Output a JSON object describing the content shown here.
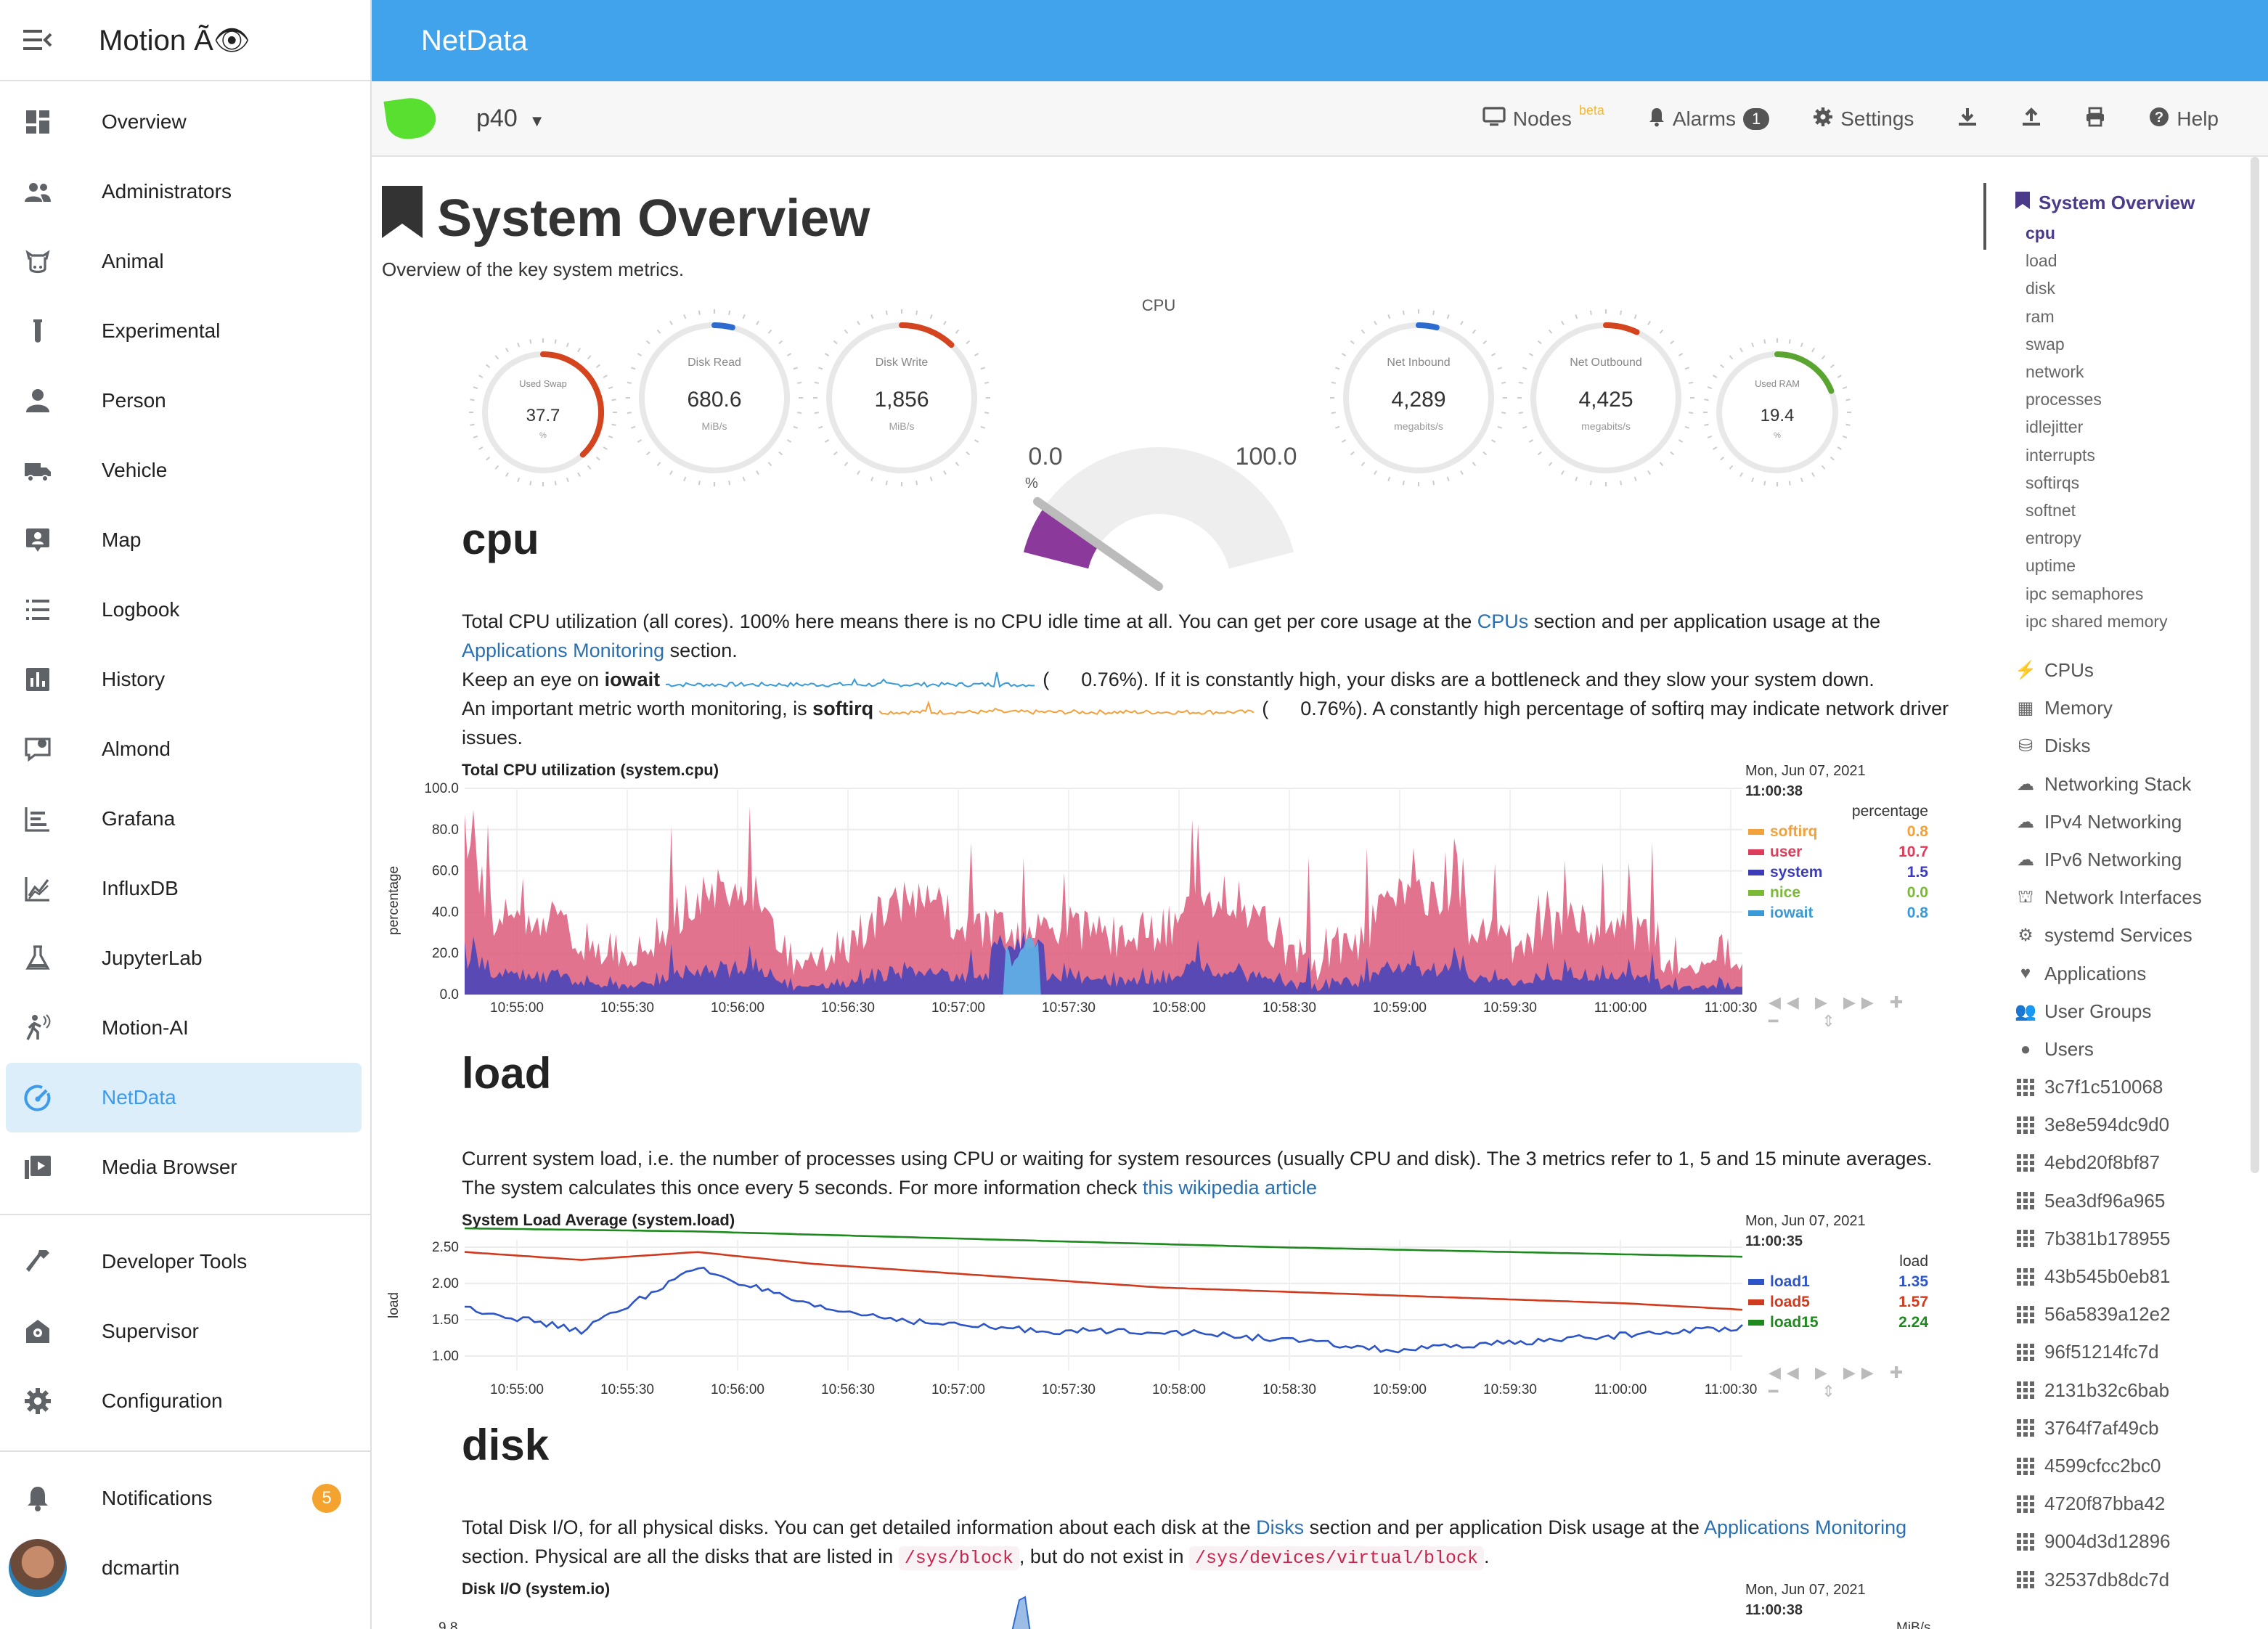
{
  "app": {
    "title": "Motion Ã👁",
    "page_title": "NetData"
  },
  "sidebar": {
    "items": [
      {
        "label": "Overview",
        "icon": "dashboard-icon"
      },
      {
        "label": "Administrators",
        "icon": "people-icon"
      },
      {
        "label": "Animal",
        "icon": "cow-icon"
      },
      {
        "label": "Experimental",
        "icon": "test-tube-icon"
      },
      {
        "label": "Person",
        "icon": "person-icon"
      },
      {
        "label": "Vehicle",
        "icon": "truck-icon"
      },
      {
        "label": "Map",
        "icon": "map-icon"
      },
      {
        "label": "Logbook",
        "icon": "list-icon"
      },
      {
        "label": "History",
        "icon": "chart-box-icon"
      },
      {
        "label": "Almond",
        "icon": "chat-icon"
      },
      {
        "label": "Grafana",
        "icon": "grafana-icon"
      },
      {
        "label": "InfluxDB",
        "icon": "line-chart-icon"
      },
      {
        "label": "JupyterLab",
        "icon": "flask-icon"
      },
      {
        "label": "Motion-AI",
        "icon": "walker-icon"
      },
      {
        "label": "NetData",
        "icon": "speedometer-icon"
      },
      {
        "label": "Media Browser",
        "icon": "play-box-icon"
      }
    ],
    "tools": [
      {
        "label": "Developer Tools",
        "icon": "hammer-icon"
      },
      {
        "label": "Supervisor",
        "icon": "supervisor-icon"
      },
      {
        "label": "Configuration",
        "icon": "gear-icon"
      }
    ],
    "notifications": {
      "label": "Notifications",
      "count": "5"
    },
    "user": {
      "name": "dcmartin"
    }
  },
  "toolbar": {
    "host": "p40",
    "nodes_label": "Nodes",
    "beta_label": "beta",
    "alarms_label": "Alarms",
    "alarms_count": "1",
    "settings_label": "Settings",
    "help_label": "Help"
  },
  "overview": {
    "title": "System Overview",
    "subtitle": "Overview of the key system metrics."
  },
  "gauges": [
    {
      "title": "Used Swap",
      "value": "37.7",
      "unit": "%",
      "fraction": 0.38,
      "color": "#d4451f"
    },
    {
      "title": "Disk Read",
      "value": "680.6",
      "unit": "MiB/s",
      "fraction": 0.04,
      "color": "#2d6bd1"
    },
    {
      "title": "Disk Write",
      "value": "1,856",
      "unit": "MiB/s",
      "fraction": 0.12,
      "color": "#d4451f"
    },
    {
      "title": "Net Inbound",
      "value": "4,289",
      "unit": "megabits/s",
      "fraction": 0.01,
      "color": "#2d6bd1"
    },
    {
      "title": "Net Outbound",
      "value": "4,425",
      "unit": "megabits/s",
      "fraction": 0.07,
      "color": "#d4451f"
    },
    {
      "title": "Used RAM",
      "value": "19.4",
      "unit": "%",
      "fraction": 0.19,
      "color": "#5aa52f"
    }
  ],
  "cpu_gauge": {
    "title": "CPU",
    "value": "13.7",
    "min": "0.0",
    "max": "100.0",
    "unit": "%",
    "fraction": 0.137
  },
  "sections": {
    "cpu": {
      "title": "cpu",
      "p1a": "Total CPU utilization (all cores). 100% here means there is no CPU idle time at all. You can get per core usage at the ",
      "p1_link1": "CPUs",
      "p1b": " section and per application usage at the ",
      "p1_link2": "Applications Monitoring",
      "p1c": " section.",
      "p2a": "Keep an eye on ",
      "p2_bold": "iowait",
      "p2_value": "0.76%",
      "p2b": "). If it is constantly high, your disks are a bottleneck and they slow your system down.",
      "p3a": "An important metric worth monitoring, is ",
      "p3_bold": "softirq",
      "p3_value": "0.76%",
      "p3b": "). A constantly high percentage of softirq may indicate network driver issues."
    },
    "load": {
      "title": "load",
      "p1": "Current system load, i.e. the number of processes using CPU or waiting for system resources (usually CPU and disk). The 3 metrics refer to 1, 5 and 15 minute averages. The system calculates this once every 5 seconds. For more information check ",
      "link": "this wikipedia article"
    },
    "disk": {
      "title": "disk",
      "p1a": "Total Disk I/O, for all physical disks. You can get detailed information about each disk at the ",
      "link1": "Disks",
      "p1b": " section and per application Disk usage at the ",
      "link2": "Applications Monitoring",
      "p1c": " section. Physical are all the disks that are listed in ",
      "code1": "/sys/block",
      "p1d": ", but do not exist in ",
      "code2": "/sys/devices/virtual/block",
      "p1e": "."
    }
  },
  "charts": {
    "cpu": {
      "title": "Total CPU utilization (system.cpu)",
      "date": "Mon, Jun 07, 2021",
      "time": "11:00:38",
      "ylabel": "percentage",
      "unit": "percentage",
      "yticks": [
        "100.0",
        "80.0",
        "60.0",
        "40.0",
        "20.0",
        "0.0"
      ],
      "xticks": [
        "10:55:00",
        "10:55:30",
        "10:56:00",
        "10:56:30",
        "10:57:00",
        "10:57:30",
        "10:58:00",
        "10:58:30",
        "10:59:00",
        "10:59:30",
        "11:00:00",
        "11:00:30"
      ],
      "legend": [
        {
          "name": "softirq",
          "value": "0.8",
          "color": "#f3a13b"
        },
        {
          "name": "user",
          "value": "10.7",
          "color": "#dc3d5a"
        },
        {
          "name": "system",
          "value": "1.5",
          "color": "#3c3cb8"
        },
        {
          "name": "nice",
          "value": "0.0",
          "color": "#7ab935"
        },
        {
          "name": "iowait",
          "value": "0.8",
          "color": "#3a9ad6"
        }
      ]
    },
    "load": {
      "title": "System Load Average (system.load)",
      "date": "Mon, Jun 07, 2021",
      "time": "11:00:35",
      "ylabel": "load",
      "unit": "load",
      "yticks": [
        "2.50",
        "2.00",
        "1.50",
        "1.00"
      ],
      "xticks": [
        "10:55:00",
        "10:55:30",
        "10:56:00",
        "10:56:30",
        "10:57:00",
        "10:57:30",
        "10:58:00",
        "10:58:30",
        "10:59:00",
        "10:59:30",
        "11:00:00",
        "11:00:30"
      ],
      "legend": [
        {
          "name": "load1",
          "value": "1.35",
          "color": "#2d55c8"
        },
        {
          "name": "load5",
          "value": "1.57",
          "color": "#d03a1e"
        },
        {
          "name": "load15",
          "value": "2.24",
          "color": "#1e8a1e"
        }
      ]
    },
    "disk": {
      "title": "Disk I/O (system.io)",
      "date": "Mon, Jun 07, 2021",
      "time": "11:00:38",
      "ytick": "9.8",
      "unit": "MiB/s"
    }
  },
  "chart_data": [
    {
      "type": "area",
      "title": "Total CPU utilization (system.cpu)",
      "ylabel": "percentage",
      "ylim": [
        0,
        100
      ],
      "x": [
        "10:55:00",
        "10:55:30",
        "10:56:00",
        "10:56:30",
        "10:57:00",
        "10:57:30",
        "10:58:00",
        "10:58:30",
        "10:59:00",
        "10:59:30",
        "11:00:00",
        "11:00:30"
      ],
      "series": [
        {
          "name": "user",
          "values": [
            45,
            35,
            60,
            30,
            50,
            30,
            25,
            35,
            40,
            25,
            45,
            10
          ]
        },
        {
          "name": "system",
          "values": [
            8,
            10,
            12,
            6,
            18,
            8,
            6,
            6,
            8,
            5,
            10,
            2
          ]
        }
      ]
    },
    {
      "type": "line",
      "title": "System Load Average (system.load)",
      "ylabel": "load",
      "ylim": [
        0.8,
        2.6
      ],
      "x": [
        "10:55:00",
        "10:55:30",
        "10:56:00",
        "10:56:30",
        "10:57:00",
        "10:57:30",
        "10:58:00",
        "10:58:30",
        "10:59:00",
        "10:59:30",
        "11:00:00",
        "11:00:30"
      ],
      "series": [
        {
          "name": "load1",
          "values": [
            1.6,
            1.3,
            2.1,
            1.6,
            1.4,
            1.3,
            1.3,
            1.2,
            1.05,
            1.15,
            1.25,
            1.35
          ]
        },
        {
          "name": "load5",
          "values": [
            2.3,
            2.2,
            2.3,
            2.15,
            2.05,
            1.95,
            1.85,
            1.8,
            1.75,
            1.7,
            1.65,
            1.57
          ]
        },
        {
          "name": "load15",
          "values": [
            2.6,
            2.58,
            2.56,
            2.52,
            2.48,
            2.44,
            2.4,
            2.36,
            2.33,
            2.3,
            2.27,
            2.24
          ]
        }
      ]
    }
  ],
  "right_nav": {
    "head": "System Overview",
    "subs": [
      "cpu",
      "load",
      "disk",
      "ram",
      "swap",
      "network",
      "processes",
      "idlejitter",
      "interrupts",
      "softirqs",
      "softnet",
      "entropy",
      "uptime",
      "ipc semaphores",
      "ipc shared memory"
    ],
    "groups": [
      "CPUs",
      "Memory",
      "Disks",
      "Networking Stack",
      "IPv4 Networking",
      "IPv6 Networking",
      "Network Interfaces",
      "systemd Services",
      "Applications",
      "User Groups",
      "Users"
    ],
    "containers": [
      "3c7f1c510068",
      "3e8e594dc9d0",
      "4ebd20f8bf87",
      "5ea3df96a965",
      "7b381b178955",
      "43b545b0eb81",
      "56a5839a12e2",
      "96f51214fc7d",
      "2131b32c6bab",
      "3764f7af49cb",
      "4599cfcc2bc0",
      "4720f87bba42",
      "9004d3d12896",
      "32537db8dc7d"
    ]
  }
}
